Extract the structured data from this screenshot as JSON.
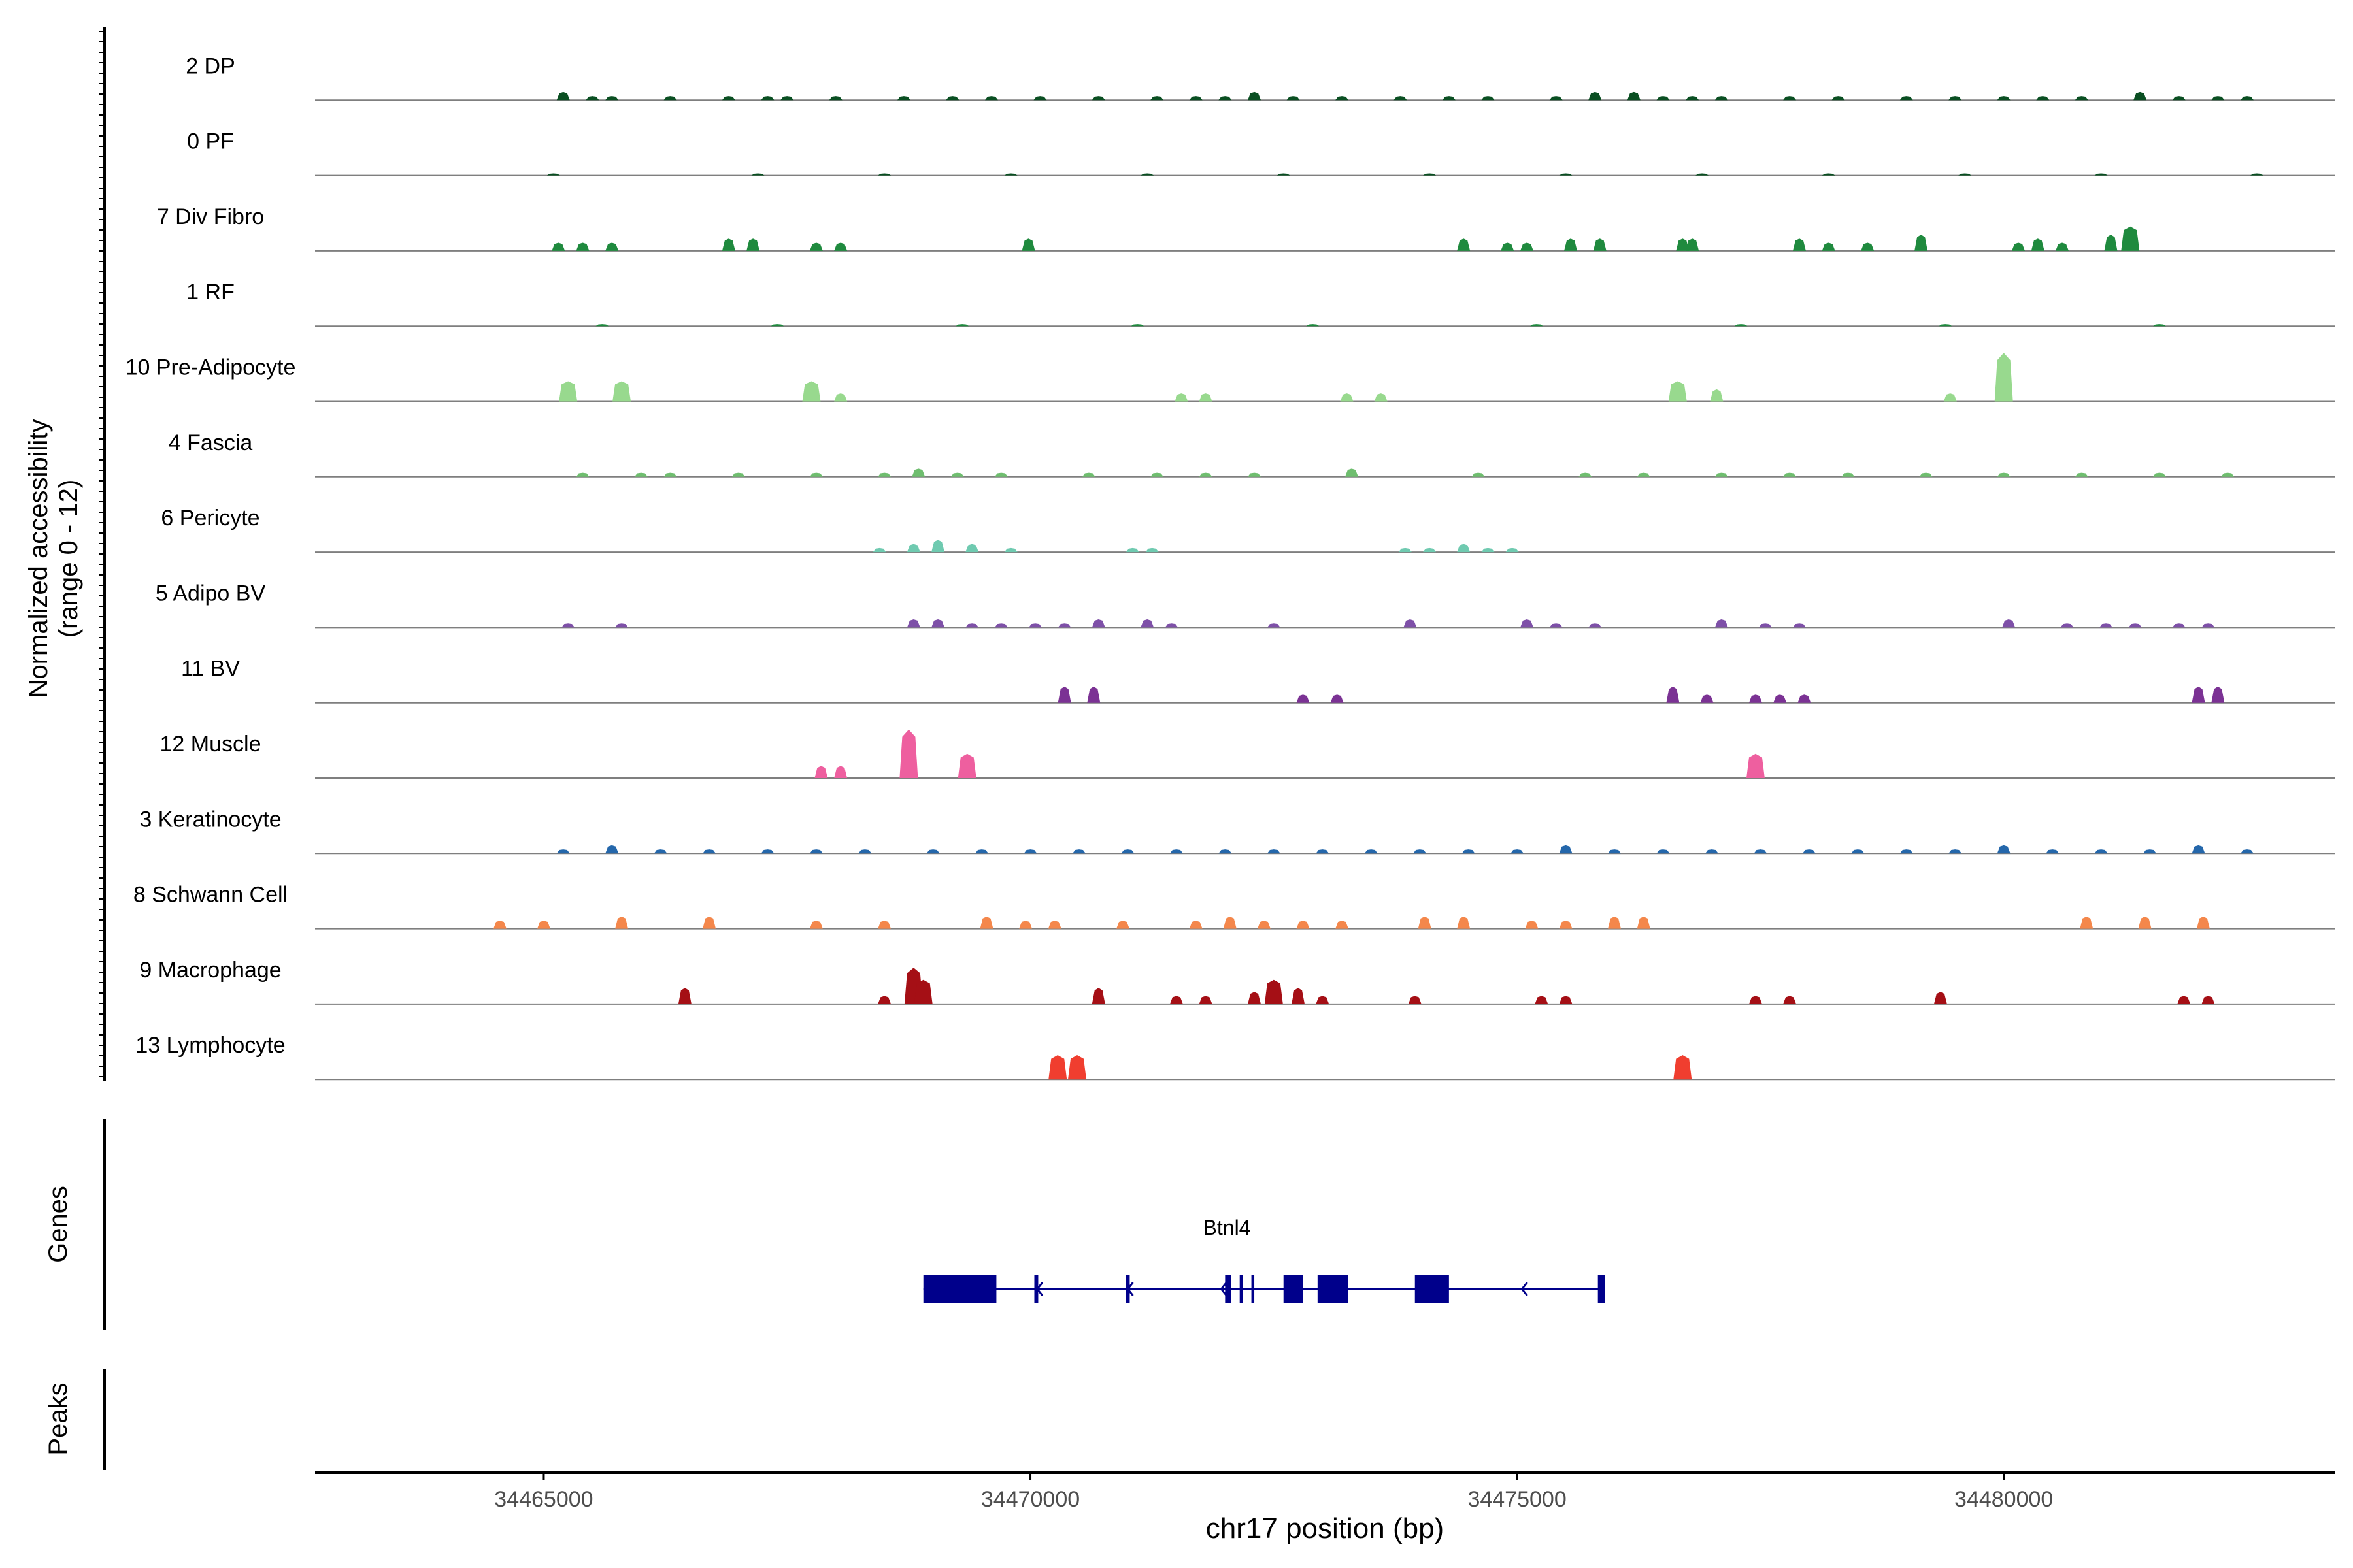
{
  "chart_data": {
    "type": "area",
    "title": "",
    "chromosome": "chr17",
    "xlabel": "chr17 position (bp)",
    "ylabel_line1": "Normalized accessibility",
    "ylabel_line2": "(range 0 - 12)",
    "xlim": [
      34462650,
      34483400
    ],
    "ylim": [
      0,
      12
    ],
    "xticks": [
      34465000,
      34470000,
      34475000,
      34480000
    ],
    "xtick_labels": [
      "34465000",
      "34470000",
      "34475000",
      "34480000"
    ],
    "tracks": [
      {
        "name": "2 DP",
        "color": "#0a4f22",
        "peaks": [
          [
            34465200,
            2
          ],
          [
            34465500,
            1
          ],
          [
            34465700,
            1
          ],
          [
            34466300,
            1
          ],
          [
            34466900,
            1
          ],
          [
            34467300,
            1
          ],
          [
            34467500,
            1
          ],
          [
            34468000,
            1
          ],
          [
            34468700,
            1
          ],
          [
            34469200,
            1
          ],
          [
            34469600,
            1
          ],
          [
            34470100,
            1
          ],
          [
            34470700,
            1
          ],
          [
            34471300,
            1
          ],
          [
            34471700,
            1
          ],
          [
            34472000,
            1
          ],
          [
            34472300,
            2
          ],
          [
            34472700,
            1
          ],
          [
            34473200,
            1
          ],
          [
            34473800,
            1
          ],
          [
            34474300,
            1
          ],
          [
            34474700,
            1
          ],
          [
            34475400,
            1
          ],
          [
            34475800,
            2
          ],
          [
            34476200,
            2
          ],
          [
            34476500,
            1
          ],
          [
            34476800,
            1
          ],
          [
            34477100,
            1
          ],
          [
            34477800,
            1
          ],
          [
            34478300,
            1
          ],
          [
            34479000,
            1
          ],
          [
            34479500,
            1
          ],
          [
            34480000,
            1
          ],
          [
            34480400,
            1
          ],
          [
            34480800,
            1
          ],
          [
            34481400,
            2
          ],
          [
            34481800,
            1
          ],
          [
            34482200,
            1
          ],
          [
            34482500,
            1
          ]
        ]
      },
      {
        "name": "0 PF",
        "color": "#0a4f22",
        "peaks": [
          [
            34465100,
            0.5
          ],
          [
            34467200,
            0.5
          ],
          [
            34468500,
            0.5
          ],
          [
            34469800,
            0.5
          ],
          [
            34471200,
            0.5
          ],
          [
            34472600,
            0.5
          ],
          [
            34474100,
            0.5
          ],
          [
            34475500,
            0.5
          ],
          [
            34476900,
            0.5
          ],
          [
            34478200,
            0.5
          ],
          [
            34479600,
            0.5
          ],
          [
            34481000,
            0.5
          ],
          [
            34482600,
            0.5
          ]
        ]
      },
      {
        "name": "7 Div Fibro",
        "color": "#1f8a3e",
        "peaks": [
          [
            34465150,
            2
          ],
          [
            34465400,
            2
          ],
          [
            34465700,
            2
          ],
          [
            34466900,
            3
          ],
          [
            34467150,
            3
          ],
          [
            34467800,
            2
          ],
          [
            34468050,
            2
          ],
          [
            34469980,
            3
          ],
          [
            34474450,
            3
          ],
          [
            34474900,
            2
          ],
          [
            34475100,
            2
          ],
          [
            34475550,
            3
          ],
          [
            34475850,
            3
          ],
          [
            34476700,
            3
          ],
          [
            34476800,
            3
          ],
          [
            34477900,
            3
          ],
          [
            34478200,
            2
          ],
          [
            34478600,
            2
          ],
          [
            34479150,
            4
          ],
          [
            34480150,
            2
          ],
          [
            34480350,
            3
          ],
          [
            34480600,
            2
          ],
          [
            34481100,
            4
          ],
          [
            34481300,
            6
          ]
        ]
      },
      {
        "name": "1 RF",
        "color": "#1f8a3e",
        "peaks": [
          [
            34465600,
            0.5
          ],
          [
            34467400,
            0.5
          ],
          [
            34469300,
            0.5
          ],
          [
            34471100,
            0.5
          ],
          [
            34472900,
            0.5
          ],
          [
            34475200,
            0.5
          ],
          [
            34477300,
            0.5
          ],
          [
            34479400,
            0.5
          ],
          [
            34481600,
            0.5
          ]
        ]
      },
      {
        "name": "10 Pre-Adipocyte",
        "color": "#98d98e",
        "peaks": [
          [
            34465250,
            5
          ],
          [
            34465800,
            5
          ],
          [
            34467750,
            5
          ],
          [
            34468050,
            2
          ],
          [
            34471550,
            2
          ],
          [
            34471800,
            2
          ],
          [
            34473250,
            2
          ],
          [
            34473600,
            2
          ],
          [
            34476650,
            5
          ],
          [
            34477050,
            3
          ],
          [
            34479450,
            2
          ],
          [
            34480000,
            12
          ]
        ]
      },
      {
        "name": "4 Fascia",
        "color": "#6fbe6f",
        "peaks": [
          [
            34465400,
            1
          ],
          [
            34466000,
            1
          ],
          [
            34466300,
            1
          ],
          [
            34467000,
            1
          ],
          [
            34467800,
            1
          ],
          [
            34468500,
            1
          ],
          [
            34468850,
            2
          ],
          [
            34469250,
            1
          ],
          [
            34469700,
            1
          ],
          [
            34470600,
            1
          ],
          [
            34471300,
            1
          ],
          [
            34471800,
            1
          ],
          [
            34472300,
            1
          ],
          [
            34473300,
            2
          ],
          [
            34474600,
            1
          ],
          [
            34475700,
            1
          ],
          [
            34476300,
            1
          ],
          [
            34477100,
            1
          ],
          [
            34477800,
            1
          ],
          [
            34478400,
            1
          ],
          [
            34479200,
            1
          ],
          [
            34480000,
            1
          ],
          [
            34480800,
            1
          ],
          [
            34481600,
            1
          ],
          [
            34482300,
            1
          ]
        ]
      },
      {
        "name": "6 Pericyte",
        "color": "#6fcab0",
        "peaks": [
          [
            34468450,
            1
          ],
          [
            34468800,
            2
          ],
          [
            34469050,
            3
          ],
          [
            34469400,
            2
          ],
          [
            34469800,
            1
          ],
          [
            34471050,
            1
          ],
          [
            34471250,
            1
          ],
          [
            34473850,
            1
          ],
          [
            34474100,
            1
          ],
          [
            34474450,
            2
          ],
          [
            34474700,
            1
          ],
          [
            34474950,
            1
          ]
        ]
      },
      {
        "name": "5 Adipo BV",
        "color": "#7e50a8",
        "peaks": [
          [
            34465250,
            1
          ],
          [
            34465800,
            1
          ],
          [
            34468800,
            2
          ],
          [
            34469050,
            2
          ],
          [
            34469400,
            1
          ],
          [
            34469700,
            1
          ],
          [
            34470050,
            1
          ],
          [
            34470350,
            1
          ],
          [
            34470700,
            2
          ],
          [
            34471200,
            2
          ],
          [
            34471450,
            1
          ],
          [
            34472500,
            1
          ],
          [
            34473900,
            2
          ],
          [
            34475100,
            2
          ],
          [
            34475400,
            1
          ],
          [
            34475800,
            1
          ],
          [
            34477100,
            2
          ],
          [
            34477550,
            1
          ],
          [
            34477900,
            1
          ],
          [
            34480050,
            2
          ],
          [
            34480650,
            1
          ],
          [
            34481050,
            1
          ],
          [
            34481350,
            1
          ],
          [
            34481800,
            1
          ],
          [
            34482100,
            1
          ]
        ]
      },
      {
        "name": "11 BV",
        "color": "#7b3294",
        "peaks": [
          [
            34470350,
            4
          ],
          [
            34470650,
            4
          ],
          [
            34472800,
            2
          ],
          [
            34473150,
            2
          ],
          [
            34476600,
            4
          ],
          [
            34476950,
            2
          ],
          [
            34477450,
            2
          ],
          [
            34477700,
            2
          ],
          [
            34477950,
            2
          ],
          [
            34482000,
            4
          ],
          [
            34482200,
            4
          ]
        ]
      },
      {
        "name": "12 Muscle",
        "color": "#ee5f9f",
        "peaks": [
          [
            34467850,
            3
          ],
          [
            34468050,
            3
          ],
          [
            34468750,
            12
          ],
          [
            34469350,
            6
          ],
          [
            34477450,
            6
          ]
        ]
      },
      {
        "name": "3 Keratinocyte",
        "color": "#2467ab",
        "peaks": [
          [
            34465200,
            1
          ],
          [
            34465700,
            2
          ],
          [
            34466200,
            1
          ],
          [
            34466700,
            1
          ],
          [
            34467300,
            1
          ],
          [
            34467800,
            1
          ],
          [
            34468300,
            1
          ],
          [
            34469000,
            1
          ],
          [
            34469500,
            1
          ],
          [
            34470000,
            1
          ],
          [
            34470500,
            1
          ],
          [
            34471000,
            1
          ],
          [
            34471500,
            1
          ],
          [
            34472000,
            1
          ],
          [
            34472500,
            1
          ],
          [
            34473000,
            1
          ],
          [
            34473500,
            1
          ],
          [
            34474000,
            1
          ],
          [
            34474500,
            1
          ],
          [
            34475000,
            1
          ],
          [
            34475500,
            2
          ],
          [
            34476000,
            1
          ],
          [
            34476500,
            1
          ],
          [
            34477000,
            1
          ],
          [
            34477500,
            1
          ],
          [
            34478000,
            1
          ],
          [
            34478500,
            1
          ],
          [
            34479000,
            1
          ],
          [
            34479500,
            1
          ],
          [
            34480000,
            2
          ],
          [
            34480500,
            1
          ],
          [
            34481000,
            1
          ],
          [
            34481500,
            1
          ],
          [
            34482000,
            2
          ],
          [
            34482500,
            1
          ]
        ]
      },
      {
        "name": "8 Schwann Cell",
        "color": "#f4874b",
        "peaks": [
          [
            34464550,
            2
          ],
          [
            34465000,
            2
          ],
          [
            34465800,
            3
          ],
          [
            34466700,
            3
          ],
          [
            34467800,
            2
          ],
          [
            34468500,
            2
          ],
          [
            34469550,
            3
          ],
          [
            34469950,
            2
          ],
          [
            34470250,
            2
          ],
          [
            34470950,
            2
          ],
          [
            34471700,
            2
          ],
          [
            34472050,
            3
          ],
          [
            34472400,
            2
          ],
          [
            34472800,
            2
          ],
          [
            34473200,
            2
          ],
          [
            34474050,
            3
          ],
          [
            34474450,
            3
          ],
          [
            34475150,
            2
          ],
          [
            34475500,
            2
          ],
          [
            34476000,
            3
          ],
          [
            34476300,
            3
          ],
          [
            34480850,
            3
          ],
          [
            34481450,
            3
          ],
          [
            34482050,
            3
          ]
        ]
      },
      {
        "name": "9 Macrophage",
        "color": "#a50f15",
        "peaks": [
          [
            34466450,
            4
          ],
          [
            34468500,
            2
          ],
          [
            34468800,
            9
          ],
          [
            34468900,
            6
          ],
          [
            34470700,
            4
          ],
          [
            34471500,
            2
          ],
          [
            34471800,
            2
          ],
          [
            34472300,
            3
          ],
          [
            34472500,
            6
          ],
          [
            34472750,
            4
          ],
          [
            34473000,
            2
          ],
          [
            34473950,
            2
          ],
          [
            34475250,
            2
          ],
          [
            34475500,
            2
          ],
          [
            34477450,
            2
          ],
          [
            34477800,
            2
          ],
          [
            34479350,
            3
          ],
          [
            34481850,
            2
          ],
          [
            34482100,
            2
          ]
        ]
      },
      {
        "name": "13 Lymphocyte",
        "color": "#f03e2f",
        "peaks": [
          [
            34470280,
            6
          ],
          [
            34470480,
            6
          ],
          [
            34476700,
            6
          ]
        ]
      }
    ],
    "genes_label": "Genes",
    "peaks_label": "Peaks",
    "gene": {
      "name": "Btnl4",
      "strand": "-",
      "start": 34468900,
      "end": 34475900,
      "exons": [
        [
          34468900,
          34469650
        ],
        [
          34470040,
          34470080
        ],
        [
          34470980,
          34471020
        ],
        [
          34472000,
          34472060
        ],
        [
          34472150,
          34472180
        ],
        [
          34472270,
          34472300
        ],
        [
          34472600,
          34472800
        ],
        [
          34472950,
          34473260
        ],
        [
          34473950,
          34474300
        ],
        [
          34475830,
          34475900
        ]
      ],
      "arrows": [
        34470070,
        34471000,
        34471960,
        34475050
      ]
    }
  }
}
